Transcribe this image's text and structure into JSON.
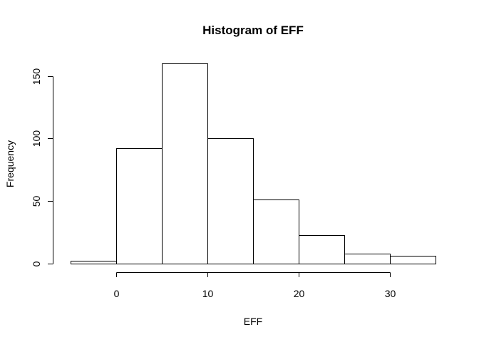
{
  "chart_data": {
    "type": "bar",
    "title": "Histogram of EFF",
    "xlabel": "EFF",
    "ylabel": "Frequency",
    "bin_edges": [
      -5,
      0,
      5,
      10,
      15,
      20,
      25,
      30,
      35
    ],
    "values": [
      2,
      92,
      160,
      100,
      51,
      23,
      8,
      6
    ],
    "xlim": [
      -5,
      35
    ],
    "ylim": [
      0,
      160
    ],
    "x_ticks": [
      0,
      10,
      20,
      30
    ],
    "y_ticks": [
      0,
      50,
      100,
      150
    ],
    "grid": false,
    "legend": "none",
    "colors": {
      "bar_fill": "#ffffff",
      "bar_stroke": "#000000"
    }
  }
}
